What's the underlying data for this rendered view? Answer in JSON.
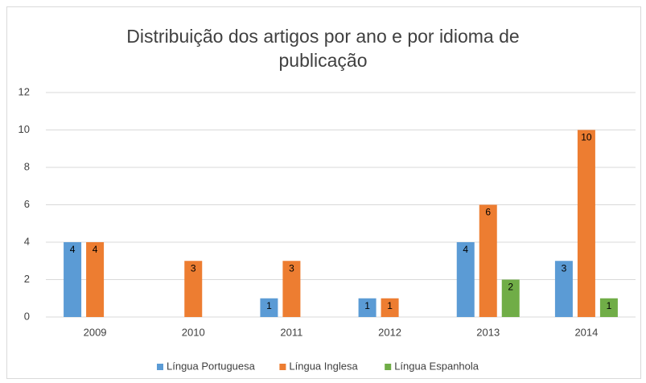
{
  "chart_data": {
    "type": "bar",
    "title": "Distribuição dos artigos por ano e por idioma de publicação",
    "categories": [
      "2009",
      "2010",
      "2011",
      "2012",
      "2013",
      "2014"
    ],
    "series": [
      {
        "name": "Língua Portuguesa",
        "color": "#5b9bd5",
        "values": [
          4,
          null,
          1,
          1,
          4,
          3
        ]
      },
      {
        "name": "Língua Inglesa",
        "color": "#ed7d31",
        "values": [
          4,
          3,
          3,
          1,
          6,
          10
        ]
      },
      {
        "name": "Língua Espanhola",
        "color": "#70ad47",
        "values": [
          null,
          null,
          null,
          null,
          2,
          1
        ]
      }
    ],
    "ylim": [
      0,
      12
    ],
    "yticks": [
      0,
      2,
      4,
      6,
      8,
      10,
      12
    ],
    "grid": true,
    "legend": "bottom"
  }
}
